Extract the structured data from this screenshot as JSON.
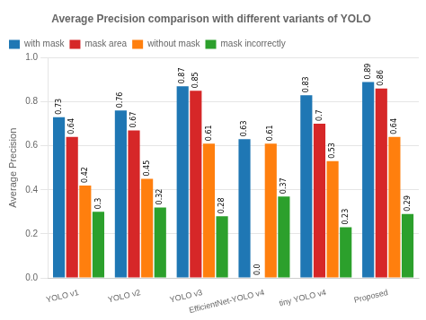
{
  "chart_data": {
    "type": "bar",
    "title": "Average Precision comparison with different variants of YOLO",
    "categories": [
      "YOLO v1",
      "YOLO v2",
      "YOLO v3",
      "EfficientNet-YOLO v4",
      "tiny YOLO v4",
      "Proposed"
    ],
    "series": [
      {
        "name": "with mask",
        "color": "#1f77b4",
        "values": [
          0.73,
          0.76,
          0.87,
          0.63,
          0.83,
          0.89
        ],
        "value_labels": [
          "0.73",
          "0.76",
          "0.87",
          "0.63",
          "0.83",
          "0.89"
        ]
      },
      {
        "name": "mask area",
        "color": "#d62728",
        "values": [
          0.64,
          0.67,
          0.85,
          0.0,
          0.7,
          0.86
        ],
        "value_labels": [
          "0.64",
          "0.67",
          "0.85",
          "0.0",
          "0.7",
          "0.86"
        ]
      },
      {
        "name": "without mask",
        "color": "#ff7f0e",
        "values": [
          0.42,
          0.45,
          0.61,
          0.61,
          0.53,
          0.64
        ],
        "value_labels": [
          "0.42",
          "0.45",
          "0.61",
          "0.61",
          "0.53",
          "0.64"
        ]
      },
      {
        "name": "mask incorrectly",
        "color": "#2ca02c",
        "values": [
          0.3,
          0.32,
          0.28,
          0.37,
          0.23,
          0.29
        ],
        "value_labels": [
          "0.3",
          "0.32",
          "0.28",
          "0.37",
          "0.23",
          "0.29"
        ]
      }
    ],
    "ylabel": "Average Precision",
    "ylim": [
      0.0,
      1.0
    ],
    "yticks": [
      {
        "value": 0,
        "label": "0.0"
      },
      0.2,
      0.4,
      0.6,
      0.8,
      {
        "value": 1,
        "label": "1.0"
      }
    ],
    "grid": true,
    "legend": "upper left",
    "data_labels": true
  }
}
